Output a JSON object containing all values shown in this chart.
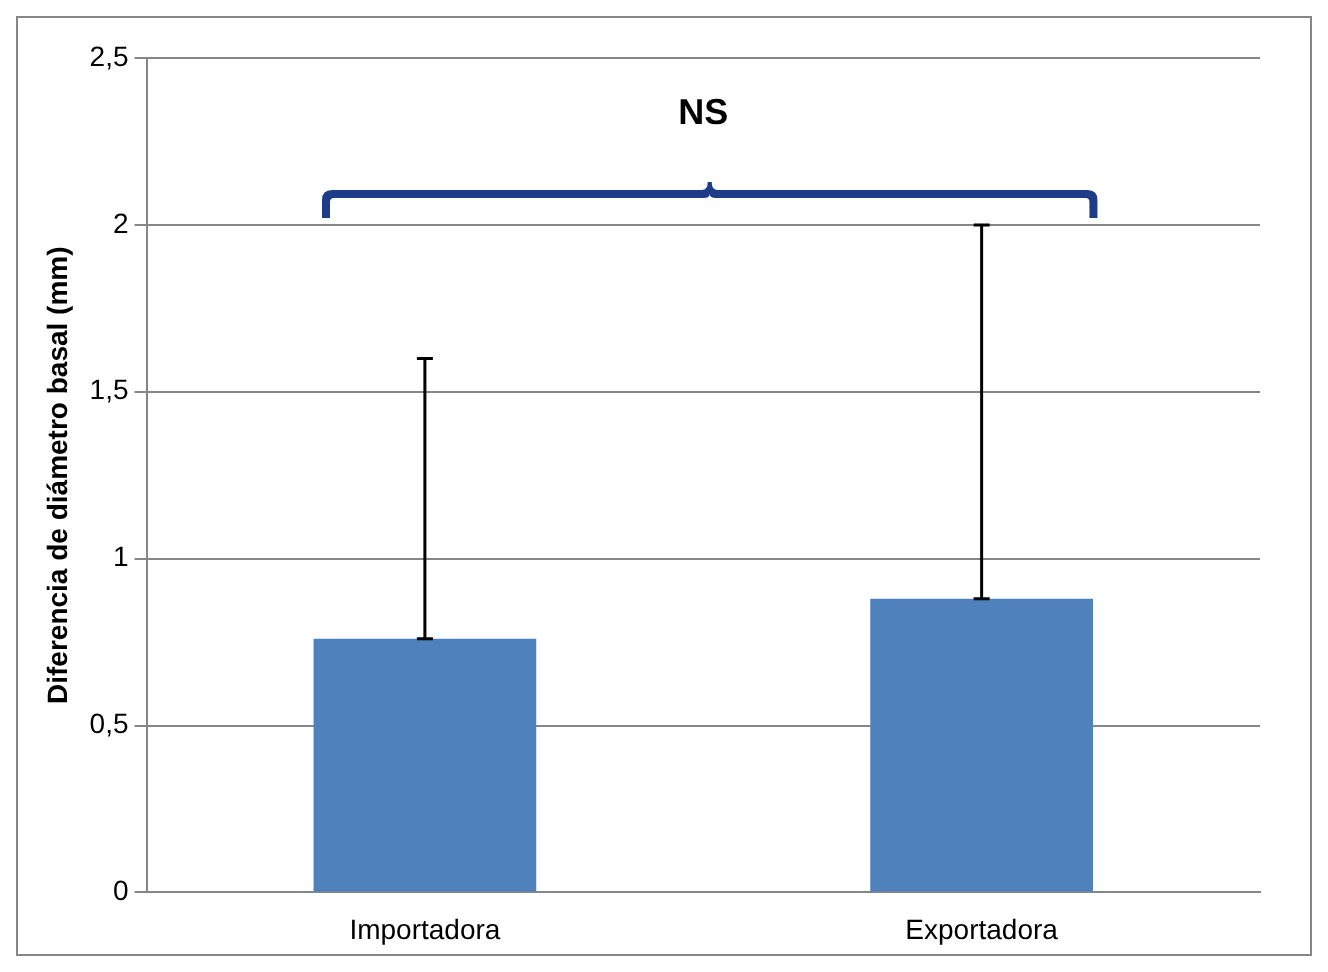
{
  "chart_data": {
    "type": "bar",
    "ylabel": "Diferencia de diámetro basal (mm)",
    "categories": [
      "Importadora",
      "Exportadora"
    ],
    "values": [
      0.76,
      0.88
    ],
    "errors": [
      [
        0.76,
        1.6
      ],
      [
        0.88,
        2.0
      ]
    ],
    "color": "#4f81bd",
    "ylim": [
      0,
      2.5
    ],
    "yticks": [
      {
        "value": 0,
        "label": "0"
      },
      {
        "value": 0.5,
        "label": "0,5"
      },
      {
        "value": 1,
        "label": "1"
      },
      {
        "value": 1.5,
        "label": "1,5"
      },
      {
        "value": 2,
        "label": "2"
      },
      {
        "value": 2.5,
        "label": "2,5"
      }
    ],
    "grid": "y",
    "legend": false,
    "annotations": [
      "NS"
    ]
  }
}
